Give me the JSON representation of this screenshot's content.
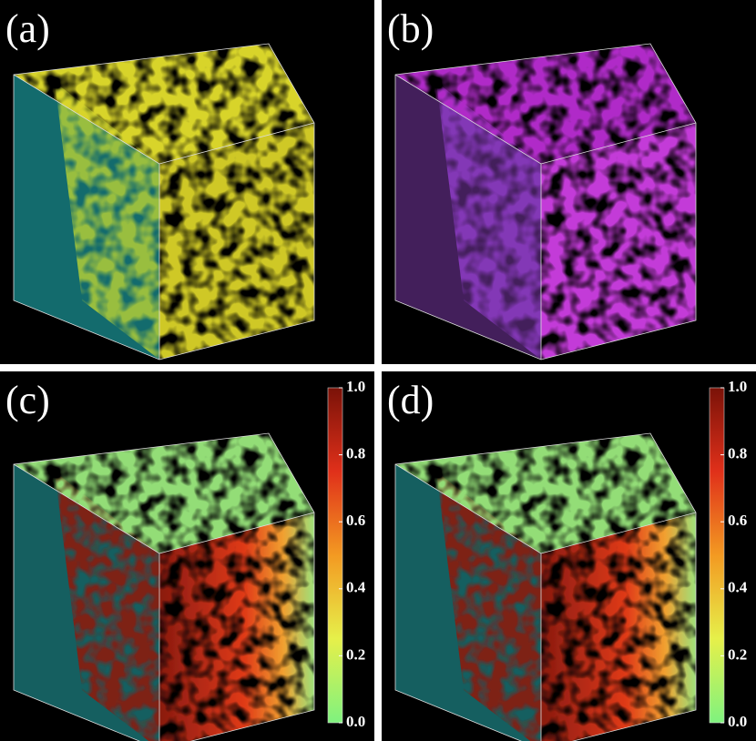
{
  "panels": [
    {
      "label": "(a)"
    },
    {
      "label": "(b)"
    },
    {
      "label": "(c)",
      "colorbar": {
        "ticks": [
          {
            "value": 1.0,
            "label": "1.0"
          },
          {
            "value": 0.8,
            "label": "0.8"
          },
          {
            "value": 0.6,
            "label": "0.6"
          },
          {
            "value": 0.4,
            "label": "0.4"
          },
          {
            "value": 0.2,
            "label": "0.2"
          },
          {
            "value": 0.0,
            "label": "0.0"
          }
        ]
      }
    },
    {
      "label": "(d)",
      "colorbar": {
        "ticks": [
          {
            "value": 1.0,
            "label": "1.0"
          },
          {
            "value": 0.8,
            "label": "0.8"
          },
          {
            "value": 0.6,
            "label": "0.6"
          },
          {
            "value": 0.4,
            "label": "0.4"
          },
          {
            "value": 0.2,
            "label": "0.2"
          },
          {
            "value": 0.0,
            "label": "0.0"
          }
        ]
      }
    }
  ]
}
